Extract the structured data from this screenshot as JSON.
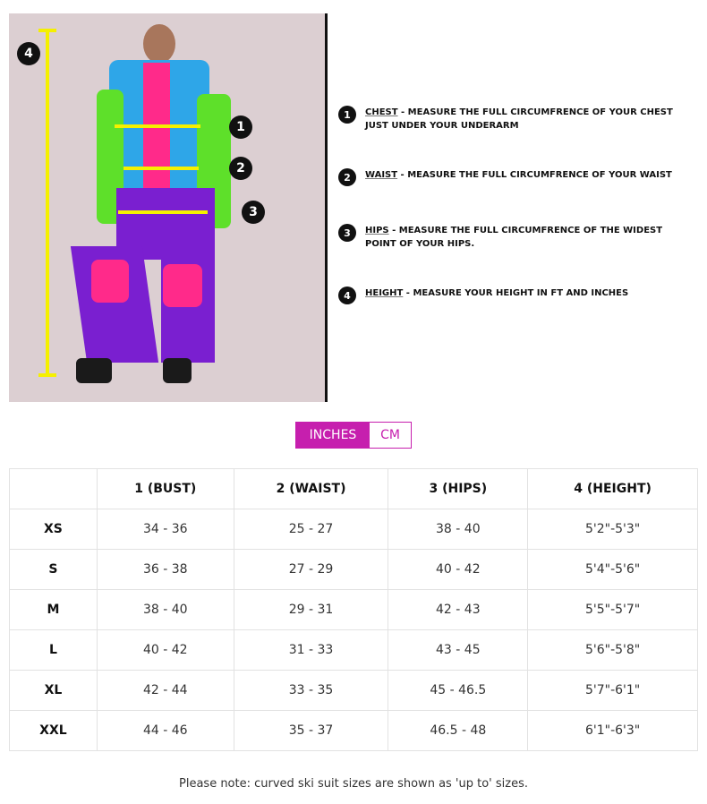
{
  "photo_markers": [
    "1",
    "2",
    "3",
    "4"
  ],
  "instructions": [
    {
      "num": "1",
      "label": "CHEST",
      "text": " - MEASURE THE FULL CIRCUMFRENCE OF YOUR CHEST JUST UNDER YOUR UNDERARM"
    },
    {
      "num": "2",
      "label": "WAIST",
      "text": " - MEASURE THE FULL CIRCUMFRENCE OF YOUR WAIST"
    },
    {
      "num": "3",
      "label": "HIPS",
      "text": " - MEASURE THE FULL CIRCUMFRENCE OF THE WIDEST POINT OF YOUR HIPS."
    },
    {
      "num": "4",
      "label": "HEIGHT",
      "text": " - MEASURE YOUR HEIGHT IN FT AND INCHES"
    }
  ],
  "unit_toggle": {
    "active": "INCHES",
    "inactive": "CM",
    "accent": "#c61fae"
  },
  "table": {
    "headers": [
      "",
      "1 (BUST)",
      "2 (WAIST)",
      "3 (HIPS)",
      "4 (HEIGHT)"
    ],
    "rows": [
      [
        "XS",
        "34 - 36",
        "25 - 27",
        "38 - 40",
        "5'2\"-5'3\""
      ],
      [
        "S",
        "36 - 38",
        "27 - 29",
        "40 - 42",
        "5'4\"-5'6\""
      ],
      [
        "M",
        "38 - 40",
        "29 - 31",
        "42 - 43",
        "5'5\"-5'7\""
      ],
      [
        "L",
        "40 - 42",
        "31 - 33",
        "43 - 45",
        "5'6\"-5'8\""
      ],
      [
        "XL",
        "42 - 44",
        "33 - 35",
        "45 - 46.5",
        "5'7\"-6'1\""
      ],
      [
        "XXL",
        "44 - 46",
        "35 - 37",
        "46.5 - 48",
        "6'1\"-6'3\""
      ]
    ]
  },
  "note": "Please note: curved ski suit sizes are shown as 'up to' sizes."
}
